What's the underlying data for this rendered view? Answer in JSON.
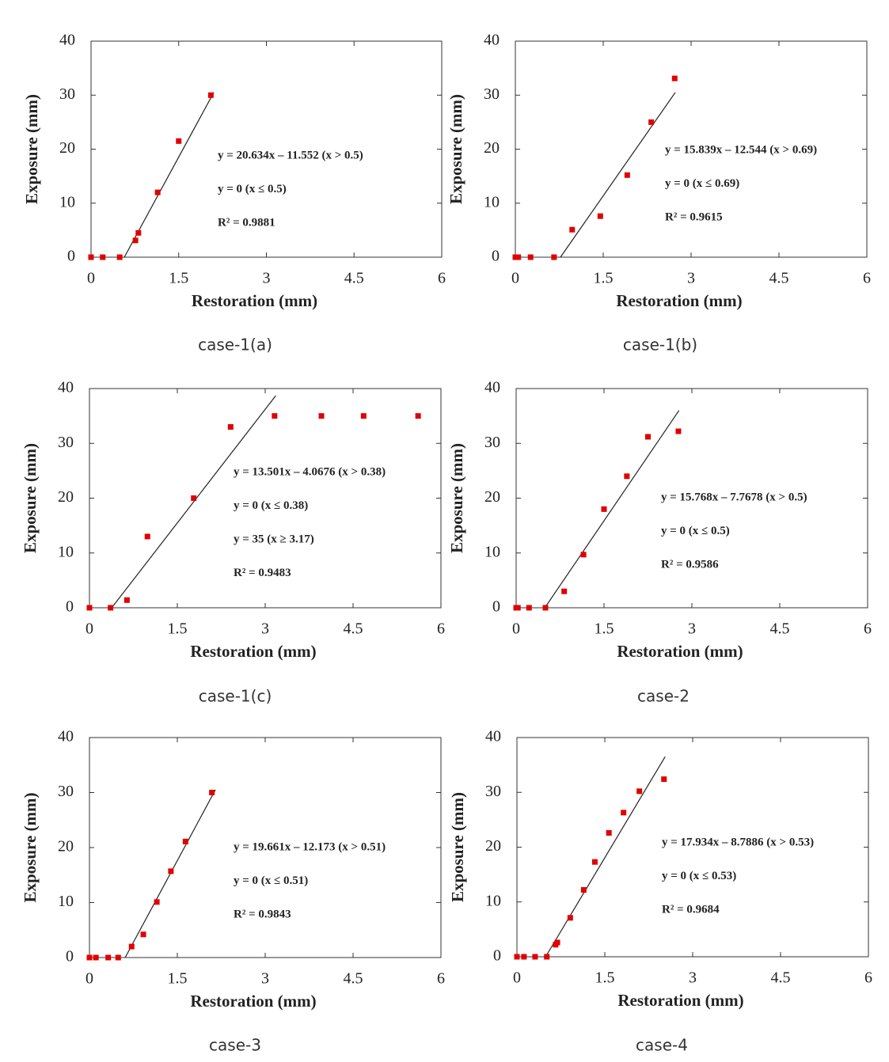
{
  "chart_data": [
    {
      "type": "scatter",
      "caption": "case-1(a)",
      "xlabel": "Restoration (mm)",
      "ylabel": "Exposure (mm)",
      "x": [
        0,
        0.2,
        0.49,
        0.76,
        0.81,
        1.14,
        1.5,
        2.05
      ],
      "values": [
        0,
        0,
        0,
        3.1,
        4.5,
        12,
        21.5,
        30
      ],
      "color": "#e00000",
      "fit_line": {
        "x": [
          0.57,
          2.1
        ],
        "y": [
          0,
          30.5
        ]
      },
      "annotations": [
        "y = 20.634x – 11.552 (x > 0.5)",
        "y = 0 (x ≤ 0.5)",
        "R² = 0.9881"
      ],
      "xlim": [
        0,
        6
      ],
      "ylim": [
        0,
        40
      ],
      "xticks": [
        0,
        1.5,
        3,
        4.5,
        6
      ],
      "yticks": [
        0,
        10,
        20,
        30,
        40
      ]
    },
    {
      "type": "scatter",
      "caption": "case-1(b)",
      "xlabel": "Restoration (mm)",
      "ylabel": "Exposure (mm)",
      "x": [
        0,
        0.05,
        0.26,
        0.66,
        0.97,
        1.45,
        1.91,
        2.32,
        2.72
      ],
      "values": [
        0,
        0,
        0,
        0,
        5.1,
        7.6,
        15.2,
        25,
        33.1
      ],
      "color": "#e00000",
      "fit_line": {
        "x": [
          0.77,
          2.73
        ],
        "y": [
          0,
          30.5
        ]
      },
      "annotations": [
        "y = 15.839x – 12.544 (x > 0.69)",
        "y = 0 (x ≤ 0.69)",
        "R² = 0.9615"
      ],
      "xlim": [
        0,
        6
      ],
      "ylim": [
        0,
        40
      ],
      "xticks": [
        0,
        1.5,
        3,
        4.5,
        6
      ],
      "yticks": [
        0,
        10,
        20,
        30,
        40
      ]
    },
    {
      "type": "scatter",
      "caption": "case-1(c)",
      "xlabel": "Restoration (mm)",
      "ylabel": "Exposure (mm)",
      "x": [
        0,
        0.36,
        0.64,
        0.99,
        1.78,
        2.41,
        3.16,
        3.96,
        4.68,
        5.61
      ],
      "values": [
        0,
        0,
        1.4,
        13,
        20,
        33,
        35,
        35,
        35,
        35
      ],
      "color": "#e00000",
      "fit_line": {
        "x": [
          0.38,
          3.18
        ],
        "y": [
          0,
          38.7
        ]
      },
      "annotations": [
        "y = 13.501x – 4.0676 (x > 0.38)",
        "y = 0 (x ≤ 0.38)",
        "y = 35 (x ≥ 3.17)",
        "R² = 0.9483"
      ],
      "xlim": [
        0,
        6
      ],
      "ylim": [
        0,
        40
      ],
      "xticks": [
        0,
        1.5,
        3,
        4.5,
        6
      ],
      "yticks": [
        0,
        10,
        20,
        30,
        40
      ]
    },
    {
      "type": "scatter",
      "caption": "case-2",
      "xlabel": "Restoration (mm)",
      "ylabel": "Exposure (mm)",
      "x": [
        0,
        0.03,
        0.22,
        0.5,
        0.82,
        1.15,
        1.5,
        1.89,
        2.25,
        2.77
      ],
      "values": [
        0,
        0,
        0,
        0,
        3,
        9.7,
        18,
        24,
        31.2,
        32.2
      ],
      "color": "#e00000",
      "fit_line": {
        "x": [
          0.49,
          2.78
        ],
        "y": [
          0,
          36
        ]
      },
      "annotations": [
        "y = 15.768x – 7.7678 (x > 0.5)",
        "y = 0 (x ≤ 0.5)",
        "R² = 0.9586"
      ],
      "xlim": [
        0,
        6
      ],
      "ylim": [
        0,
        40
      ],
      "xticks": [
        0,
        1.5,
        3,
        4.5,
        6
      ],
      "yticks": [
        0,
        10,
        20,
        30,
        40
      ]
    },
    {
      "type": "scatter",
      "caption": "case-3",
      "xlabel": "Restoration (mm)",
      "ylabel": "Exposure (mm)",
      "x": [
        0,
        0.11,
        0.32,
        0.49,
        0.72,
        0.92,
        1.15,
        1.39,
        1.64,
        2.09
      ],
      "values": [
        0,
        0,
        0,
        0,
        2,
        4.2,
        10.1,
        15.7,
        21.1,
        30
      ],
      "color": "#e00000",
      "fit_line": {
        "x": [
          0.61,
          2.15
        ],
        "y": [
          0,
          30.5
        ]
      },
      "annotations": [
        "y = 19.661x – 12.173 (x > 0.51)",
        "y = 0 (x ≤ 0.51)",
        "R² = 0.9843"
      ],
      "xlim": [
        0,
        6
      ],
      "ylim": [
        0,
        40
      ],
      "xticks": [
        0,
        1.5,
        3,
        4.5,
        6
      ],
      "yticks": [
        0,
        10,
        20,
        30,
        40
      ]
    },
    {
      "type": "scatter",
      "caption": "case-4",
      "xlabel": "Restoration (mm)",
      "ylabel": "Exposure (mm)",
      "x": [
        0,
        0.12,
        0.31,
        0.51,
        0.66,
        0.69,
        0.91,
        1.14,
        1.33,
        1.57,
        1.82,
        2.09,
        2.51
      ],
      "values": [
        0,
        0,
        0,
        0,
        2.2,
        2.6,
        7.1,
        12.2,
        17.3,
        22.6,
        26.3,
        30.2,
        32.4
      ],
      "color": "#e00000",
      "fit_line": {
        "x": [
          0.49,
          2.53
        ],
        "y": [
          0,
          36.5
        ]
      },
      "annotations": [
        "y = 17.934x – 8.7886 (x > 0.53)",
        "y = 0 (x ≤ 0.53)",
        "R² = 0.9684"
      ],
      "xlim": [
        0,
        6
      ],
      "ylim": [
        0,
        40
      ],
      "xticks": [
        0,
        1.5,
        3,
        4.5,
        6
      ],
      "yticks": [
        0,
        10,
        20,
        30,
        40
      ]
    }
  ]
}
